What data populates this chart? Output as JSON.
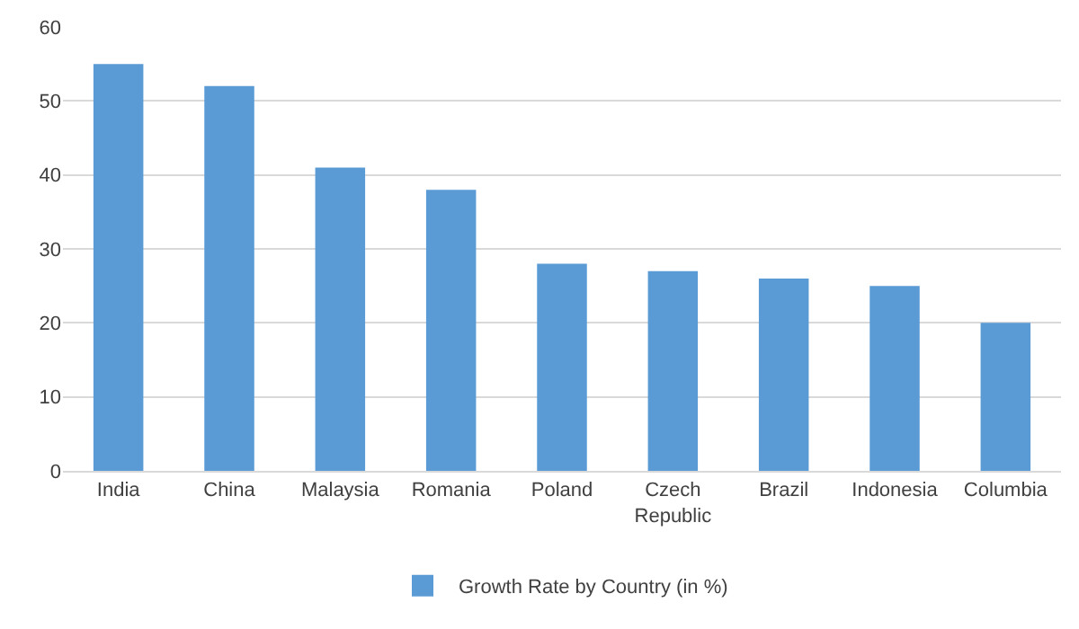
{
  "chart_data": {
    "type": "bar",
    "categories": [
      "India",
      "China",
      "Malaysia",
      "Romania",
      "Poland",
      "Czech Republic",
      "Brazil",
      "Indonesia",
      "Columbia"
    ],
    "series": [
      {
        "name": "Growth Rate by Country (in %)",
        "color": "#5b9bd5",
        "values": [
          55,
          52,
          41,
          38,
          28,
          27,
          26,
          25,
          20
        ]
      }
    ],
    "ylim": [
      0,
      60
    ],
    "yticks": [
      0,
      10,
      20,
      30,
      40,
      50,
      60
    ],
    "grid": "y",
    "legend": "bottom"
  }
}
